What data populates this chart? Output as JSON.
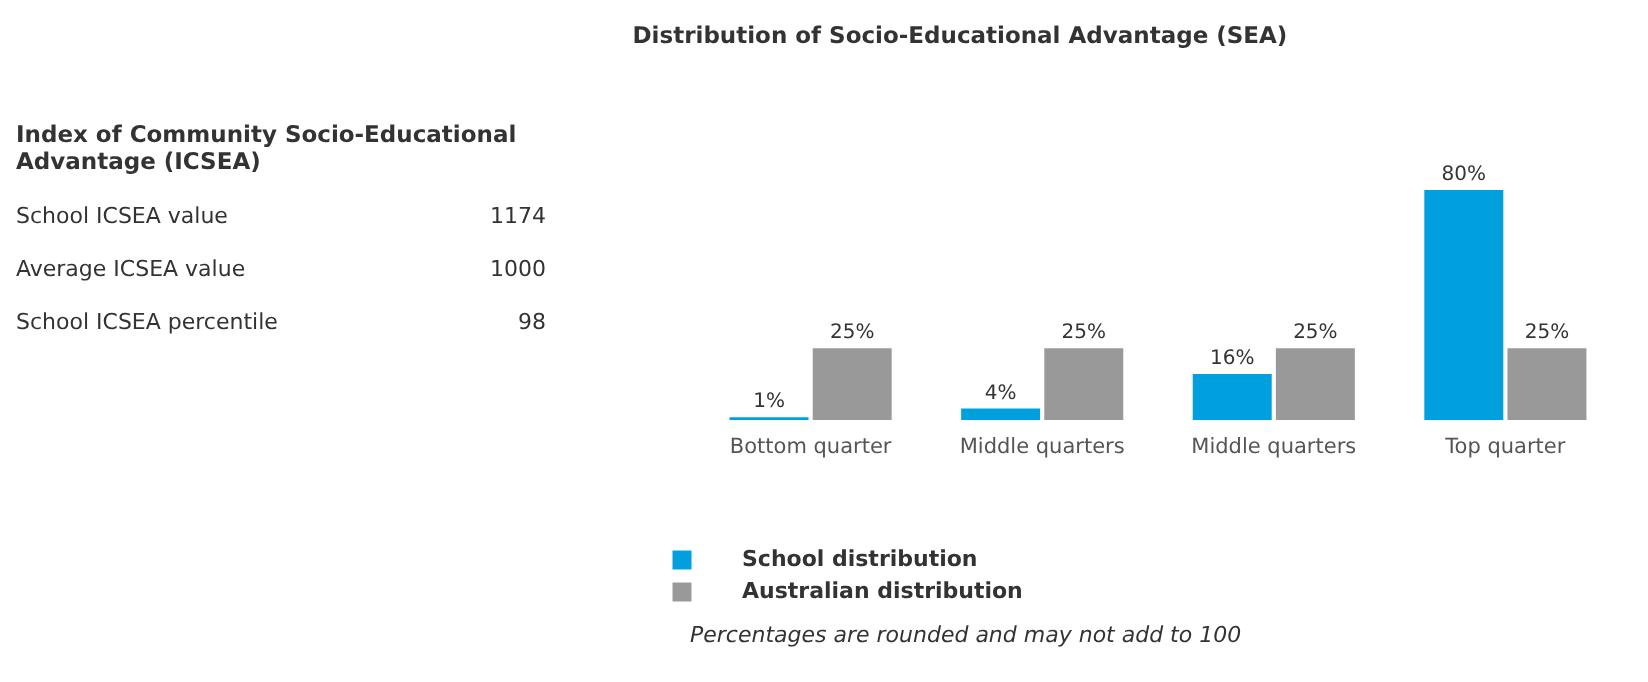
{
  "chart_data": [
    {
      "type": "other",
      "title": "Index of Community Socio-Educational Advantage (ICSEA)",
      "annotations": [
        "School ICSEA value",
        "1174",
        "Average ICSEA value",
        "1000",
        "School ICSEA percentile",
        "98"
      ]
    },
    {
      "type": "bar",
      "title": "Distribution of Socio-Educational Advantage (SEA)",
      "categories": [
        "Bottom quarter",
        "Middle quarters",
        "Middle quarters",
        "Top quarter"
      ],
      "series": [
        {
          "name": "School distribution",
          "color": "#009fde",
          "values": [
            1,
            4,
            16,
            80
          ],
          "value_labels": [
            "1%",
            "4%",
            "16%",
            "80%"
          ]
        },
        {
          "name": "Australian distribution",
          "color": "#999999",
          "values": [
            25,
            25,
            25,
            25
          ],
          "value_labels": [
            "25%",
            "25%",
            "25%",
            "25%"
          ]
        }
      ],
      "legend": "bottom left",
      "grid": false,
      "annotations": [
        "Percentages are rounded and may not add to 100"
      ]
    }
  ]
}
